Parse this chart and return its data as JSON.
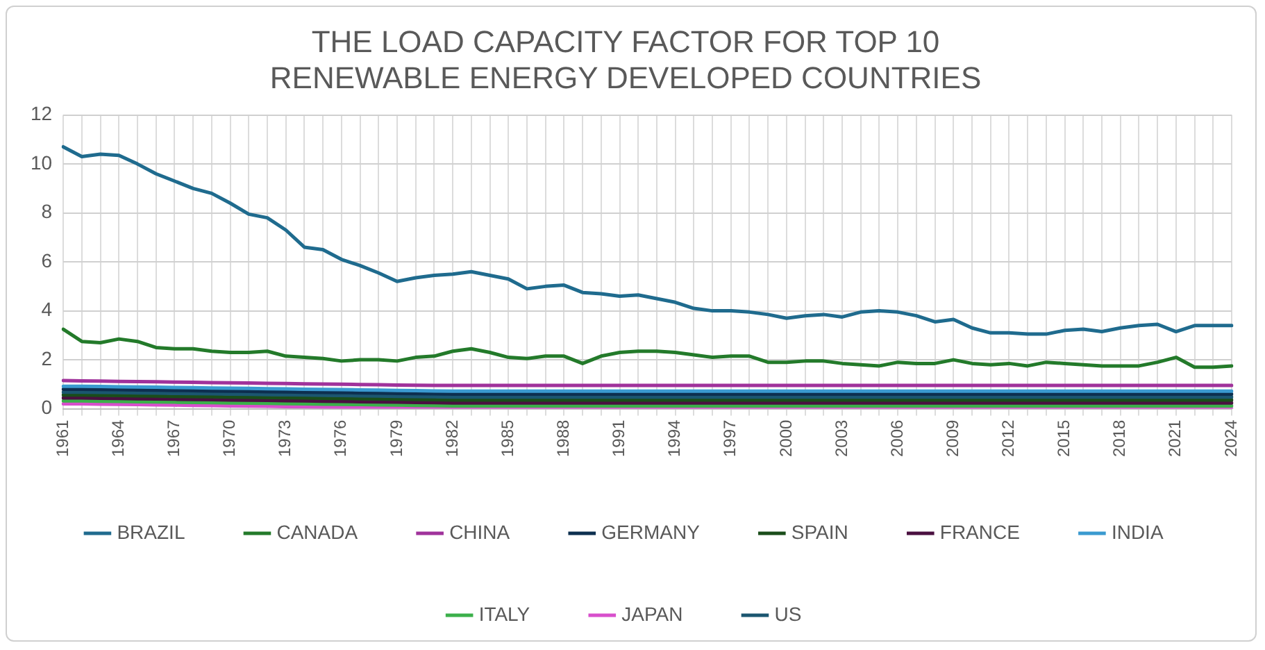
{
  "chart_data": {
    "type": "line",
    "title": "THE LOAD CAPACITY FACTOR FOR TOP 10\nRENEWABLE ENERGY DEVELOPED COUNTRIES",
    "categories": [
      "1961",
      null,
      null,
      "1964",
      null,
      null,
      "1967",
      null,
      null,
      "1970",
      null,
      null,
      "1973",
      null,
      null,
      "1976",
      null,
      null,
      "1979",
      null,
      null,
      "1982",
      null,
      null,
      "1985",
      null,
      null,
      "1988",
      null,
      null,
      "1991",
      null,
      null,
      "1994",
      null,
      null,
      "1997",
      null,
      null,
      "2000",
      null,
      null,
      "2003",
      null,
      null,
      "2006",
      null,
      null,
      "2009",
      null,
      null,
      "2012",
      null,
      null,
      "2015",
      null,
      null,
      "2018",
      null,
      null,
      "2021",
      null,
      null,
      "2024"
    ],
    "ylim": [
      0,
      12
    ],
    "yticks": [
      0,
      2,
      4,
      6,
      8,
      10,
      12
    ],
    "grid": true,
    "legend": "bottom",
    "marker": "none",
    "line_style": "solid",
    "series": [
      {
        "name": "BRAZIL",
        "color": "#1f6b8e",
        "values": [
          10.7,
          10.3,
          10.4,
          10.35,
          10.0,
          9.6,
          9.3,
          9.0,
          8.8,
          8.4,
          7.95,
          7.8,
          7.3,
          6.6,
          6.5,
          6.1,
          5.85,
          5.55,
          5.2,
          5.35,
          5.45,
          5.5,
          5.6,
          5.45,
          5.3,
          4.9,
          5.0,
          5.05,
          4.75,
          4.7,
          4.6,
          4.65,
          4.5,
          4.35,
          4.1,
          4.0,
          4.0,
          3.95,
          3.85,
          3.7,
          3.8,
          3.85,
          3.75,
          3.95,
          4.0,
          3.95,
          3.8,
          3.55,
          3.65,
          3.3,
          3.1,
          3.1,
          3.05,
          3.05,
          3.2,
          3.25,
          3.15,
          3.3,
          3.4,
          3.45,
          3.15,
          3.4,
          3.4,
          3.4
        ]
      },
      {
        "name": "CANADA",
        "color": "#237a2a",
        "values": [
          3.25,
          2.75,
          2.7,
          2.85,
          2.75,
          2.5,
          2.45,
          2.45,
          2.35,
          2.3,
          2.3,
          2.35,
          2.15,
          2.1,
          2.05,
          1.95,
          2.0,
          2.0,
          1.95,
          2.1,
          2.15,
          2.35,
          2.45,
          2.3,
          2.1,
          2.05,
          2.15,
          2.15,
          1.85,
          2.15,
          2.3,
          2.35,
          2.35,
          2.3,
          2.2,
          2.1,
          2.15,
          2.15,
          1.9,
          1.9,
          1.95,
          1.95,
          1.85,
          1.8,
          1.75,
          1.9,
          1.85,
          1.85,
          2.0,
          1.85,
          1.8,
          1.85,
          1.75,
          1.9,
          1.85,
          1.8,
          1.75,
          1.75,
          1.75,
          1.9,
          2.1,
          1.7,
          1.7,
          1.75
        ]
      },
      {
        "name": "CHINA",
        "color": "#a0329b",
        "values": [
          1.15,
          1.14,
          1.13,
          1.12,
          1.11,
          1.1,
          1.09,
          1.08,
          1.07,
          1.06,
          1.05,
          1.04,
          1.03,
          1.02,
          1.01,
          1.0,
          0.99,
          0.98,
          0.97,
          0.96,
          0.95,
          0.95,
          0.95,
          0.95,
          0.95,
          0.95,
          0.95,
          0.95,
          0.95,
          0.95,
          0.95,
          0.95,
          0.95,
          0.95,
          0.95,
          0.95,
          0.95,
          0.95,
          0.95,
          0.95,
          0.95,
          0.95,
          0.95,
          0.95,
          0.95,
          0.95,
          0.95,
          0.95,
          0.95,
          0.95,
          0.95,
          0.95,
          0.95,
          0.95,
          0.95,
          0.95,
          0.95,
          0.95,
          0.95,
          0.95,
          0.95,
          0.95,
          0.95,
          0.95
        ]
      },
      {
        "name": "GERMANY",
        "color": "#0d2f4f",
        "values": [
          0.8,
          0.8,
          0.79,
          0.78,
          0.77,
          0.76,
          0.75,
          0.74,
          0.73,
          0.72,
          0.71,
          0.7,
          0.69,
          0.68,
          0.67,
          0.66,
          0.65,
          0.64,
          0.63,
          0.62,
          0.61,
          0.6,
          0.6,
          0.6,
          0.6,
          0.6,
          0.6,
          0.6,
          0.6,
          0.6,
          0.6,
          0.6,
          0.6,
          0.6,
          0.6,
          0.6,
          0.6,
          0.6,
          0.6,
          0.6,
          0.6,
          0.6,
          0.6,
          0.6,
          0.6,
          0.6,
          0.6,
          0.6,
          0.6,
          0.6,
          0.6,
          0.6,
          0.6,
          0.6,
          0.6,
          0.6,
          0.6,
          0.6,
          0.6,
          0.6,
          0.6,
          0.6,
          0.6,
          0.6
        ]
      },
      {
        "name": "SPAIN",
        "color": "#1a4d1a",
        "values": [
          0.56,
          0.56,
          0.55,
          0.54,
          0.53,
          0.52,
          0.51,
          0.5,
          0.49,
          0.48,
          0.47,
          0.46,
          0.45,
          0.44,
          0.43,
          0.42,
          0.41,
          0.4,
          0.39,
          0.38,
          0.37,
          0.36,
          0.36,
          0.36,
          0.36,
          0.36,
          0.36,
          0.36,
          0.36,
          0.36,
          0.36,
          0.36,
          0.36,
          0.36,
          0.36,
          0.36,
          0.36,
          0.36,
          0.36,
          0.36,
          0.36,
          0.36,
          0.36,
          0.36,
          0.36,
          0.36,
          0.36,
          0.36,
          0.36,
          0.36,
          0.36,
          0.36,
          0.36,
          0.36,
          0.36,
          0.36,
          0.36,
          0.36,
          0.36,
          0.36,
          0.36,
          0.36,
          0.36,
          0.36
        ]
      },
      {
        "name": "FRANCE",
        "color": "#4a1040",
        "values": [
          0.44,
          0.44,
          0.43,
          0.42,
          0.41,
          0.4,
          0.39,
          0.38,
          0.37,
          0.36,
          0.35,
          0.34,
          0.33,
          0.32,
          0.31,
          0.3,
          0.29,
          0.28,
          0.27,
          0.26,
          0.25,
          0.24,
          0.24,
          0.24,
          0.24,
          0.24,
          0.24,
          0.24,
          0.24,
          0.24,
          0.24,
          0.24,
          0.24,
          0.24,
          0.24,
          0.24,
          0.24,
          0.24,
          0.24,
          0.24,
          0.24,
          0.24,
          0.24,
          0.24,
          0.24,
          0.24,
          0.24,
          0.24,
          0.24,
          0.24,
          0.24,
          0.24,
          0.24,
          0.24,
          0.24,
          0.24,
          0.24,
          0.24,
          0.24,
          0.24,
          0.24,
          0.24,
          0.24,
          0.24
        ]
      },
      {
        "name": "INDIA",
        "color": "#3a9ad0",
        "values": [
          0.92,
          0.92,
          0.91,
          0.9,
          0.89,
          0.88,
          0.87,
          0.86,
          0.85,
          0.84,
          0.83,
          0.82,
          0.81,
          0.8,
          0.79,
          0.78,
          0.77,
          0.76,
          0.75,
          0.74,
          0.73,
          0.72,
          0.72,
          0.72,
          0.72,
          0.72,
          0.72,
          0.72,
          0.72,
          0.72,
          0.72,
          0.72,
          0.72,
          0.72,
          0.72,
          0.72,
          0.72,
          0.72,
          0.72,
          0.72,
          0.72,
          0.72,
          0.72,
          0.72,
          0.72,
          0.72,
          0.72,
          0.72,
          0.72,
          0.72,
          0.72,
          0.72,
          0.72,
          0.72,
          0.72,
          0.72,
          0.72,
          0.72,
          0.72,
          0.72,
          0.72,
          0.72,
          0.72,
          0.72
        ]
      },
      {
        "name": "ITALY",
        "color": "#3bb04a",
        "values": [
          0.32,
          0.32,
          0.31,
          0.3,
          0.29,
          0.28,
          0.27,
          0.26,
          0.25,
          0.24,
          0.23,
          0.22,
          0.21,
          0.2,
          0.19,
          0.18,
          0.17,
          0.16,
          0.15,
          0.14,
          0.13,
          0.12,
          0.12,
          0.12,
          0.12,
          0.12,
          0.12,
          0.12,
          0.12,
          0.12,
          0.12,
          0.12,
          0.12,
          0.12,
          0.12,
          0.12,
          0.12,
          0.12,
          0.12,
          0.12,
          0.12,
          0.12,
          0.12,
          0.12,
          0.12,
          0.12,
          0.12,
          0.12,
          0.12,
          0.12,
          0.12,
          0.12,
          0.12,
          0.12,
          0.12,
          0.12,
          0.12,
          0.12,
          0.12,
          0.12,
          0.12,
          0.12,
          0.12,
          0.12
        ]
      },
      {
        "name": "JAPAN",
        "color": "#d84fcc",
        "values": [
          0.2,
          0.2,
          0.19,
          0.18,
          0.17,
          0.16,
          0.15,
          0.14,
          0.13,
          0.12,
          0.11,
          0.1,
          0.09,
          0.08,
          0.07,
          0.06,
          0.05,
          0.04,
          0.03,
          0.02,
          0.01,
          0.0,
          0.0,
          0.0,
          0.0,
          0.0,
          0.0,
          0.0,
          0.0,
          0.0,
          0.0,
          0.0,
          0.0,
          0.0,
          0.0,
          0.0,
          0.0,
          0.0,
          0.0,
          0.0,
          0.0,
          0.0,
          0.0,
          0.0,
          0.0,
          0.0,
          0.0,
          0.0,
          0.0,
          0.0,
          0.0,
          0.0,
          0.0,
          0.0,
          0.0,
          0.0,
          0.0,
          0.0,
          0.0,
          0.0,
          0.0,
          0.0,
          0.0,
          0.0
        ]
      },
      {
        "name": "US",
        "color": "#1b5670",
        "values": [
          0.68,
          0.68,
          0.67,
          0.66,
          0.65,
          0.64,
          0.63,
          0.62,
          0.61,
          0.6,
          0.59,
          0.58,
          0.57,
          0.56,
          0.55,
          0.54,
          0.53,
          0.52,
          0.51,
          0.5,
          0.49,
          0.48,
          0.48,
          0.48,
          0.48,
          0.48,
          0.48,
          0.48,
          0.48,
          0.48,
          0.48,
          0.48,
          0.48,
          0.48,
          0.48,
          0.48,
          0.48,
          0.48,
          0.48,
          0.48,
          0.48,
          0.48,
          0.48,
          0.48,
          0.48,
          0.48,
          0.48,
          0.48,
          0.48,
          0.48,
          0.48,
          0.48,
          0.48,
          0.48,
          0.48,
          0.48,
          0.48,
          0.48,
          0.48,
          0.48,
          0.48,
          0.48,
          0.48,
          0.48
        ]
      }
    ]
  }
}
